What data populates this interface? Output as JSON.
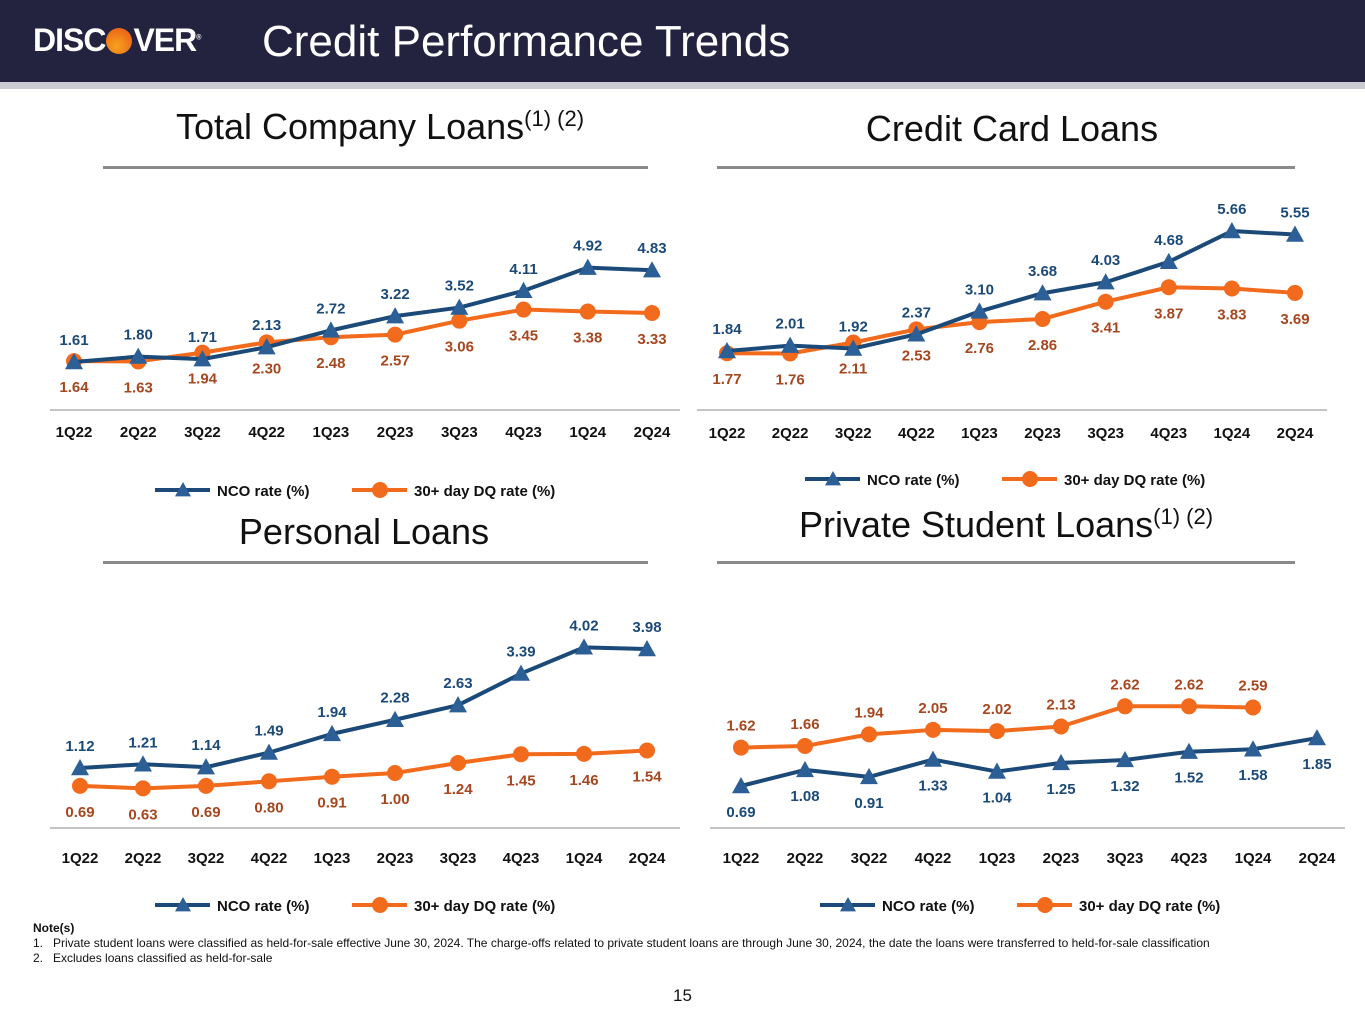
{
  "header": {
    "logo_text": "DISCOVER",
    "title": "Credit Performance Trends"
  },
  "colors": {
    "nco_line": "#1c4a78",
    "nco_marker": "#2d5f97",
    "nco_label": "#1c4a78",
    "dq_line": "#f26a1b",
    "dq_label": "#a6481f",
    "axis": "#8c8c8c"
  },
  "chart_data": [
    {
      "type": "line",
      "title": "Total Company Loans",
      "title_sup": "(1) (2)",
      "categories": [
        "1Q22",
        "2Q22",
        "3Q22",
        "4Q22",
        "1Q23",
        "2Q23",
        "3Q23",
        "4Q23",
        "1Q24",
        "2Q24"
      ],
      "series": [
        {
          "name": "NCO rate (%)",
          "values": [
            1.61,
            1.8,
            1.71,
            2.13,
            2.72,
            3.22,
            3.52,
            4.11,
            4.92,
            4.83
          ]
        },
        {
          "name": "30+ day DQ rate (%)",
          "values": [
            1.64,
            1.63,
            1.94,
            2.3,
            2.48,
            2.57,
            3.06,
            3.45,
            3.38,
            3.33
          ]
        }
      ],
      "legend": "bottom"
    },
    {
      "type": "line",
      "title": "Credit Card Loans",
      "title_sup": "",
      "categories": [
        "1Q22",
        "2Q22",
        "3Q22",
        "4Q22",
        "1Q23",
        "2Q23",
        "3Q23",
        "4Q23",
        "1Q24",
        "2Q24"
      ],
      "series": [
        {
          "name": "NCO rate (%)",
          "values": [
            1.84,
            2.01,
            1.92,
            2.37,
            3.1,
            3.68,
            4.03,
            4.68,
            5.66,
            5.55
          ]
        },
        {
          "name": "30+ day DQ rate (%)",
          "values": [
            1.77,
            1.76,
            2.11,
            2.53,
            2.76,
            2.86,
            3.41,
            3.87,
            3.83,
            3.69
          ]
        }
      ],
      "legend": "bottom"
    },
    {
      "type": "line",
      "title": "Personal Loans",
      "title_sup": "",
      "categories": [
        "1Q22",
        "2Q22",
        "3Q22",
        "4Q22",
        "1Q23",
        "2Q23",
        "3Q23",
        "4Q23",
        "1Q24",
        "2Q24"
      ],
      "series": [
        {
          "name": "NCO rate (%)",
          "values": [
            1.12,
            1.21,
            1.14,
            1.49,
            1.94,
            2.28,
            2.63,
            3.39,
            4.02,
            3.98
          ]
        },
        {
          "name": "30+ day DQ rate (%)",
          "values": [
            0.69,
            0.63,
            0.69,
            0.8,
            0.91,
            1.0,
            1.24,
            1.45,
            1.46,
            1.54
          ]
        }
      ],
      "legend": "bottom"
    },
    {
      "type": "line",
      "title": "Private Student Loans",
      "title_sup": "(1) (2)",
      "categories": [
        "1Q22",
        "2Q22",
        "3Q22",
        "4Q22",
        "1Q23",
        "2Q23",
        "3Q23",
        "4Q23",
        "1Q24",
        "2Q24"
      ],
      "series": [
        {
          "name": "NCO rate (%)",
          "values": [
            0.69,
            1.08,
            0.91,
            1.33,
            1.04,
            1.25,
            1.32,
            1.52,
            1.58,
            1.85
          ]
        },
        {
          "name": "30+ day DQ rate (%)",
          "values": [
            1.62,
            1.66,
            1.94,
            2.05,
            2.02,
            2.13,
            2.62,
            2.62,
            2.59,
            null
          ]
        }
      ],
      "legend": "bottom"
    }
  ],
  "notes": {
    "heading": "Note(s)",
    "items": [
      "1.   Private student loans were classified as held-for-sale effective June 30, 2024. The charge-offs related to private student loans are through June 30, 2024, the date the loans were transferred to held-for-sale classification",
      "2.   Excludes loans classified as held-for-sale"
    ]
  },
  "page_number": "15"
}
